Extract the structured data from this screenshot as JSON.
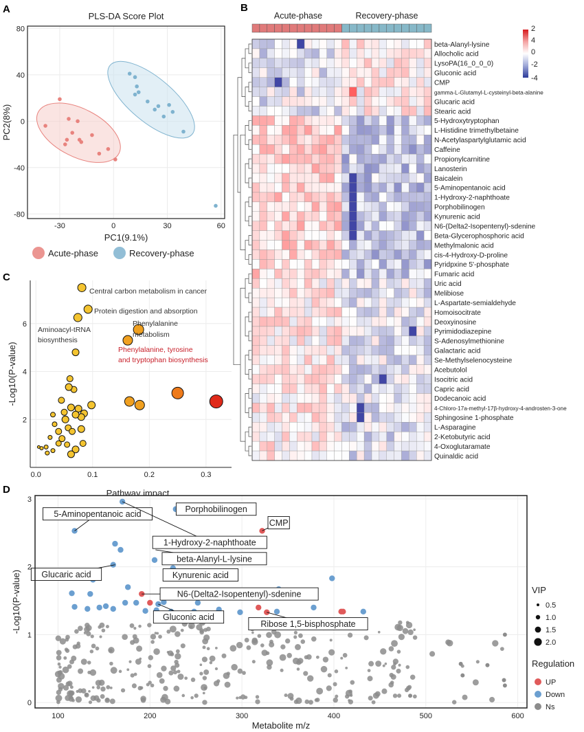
{
  "panels": {
    "A": "A",
    "B": "B",
    "C": "C",
    "D": "D"
  },
  "colors": {
    "acute": "#e8837e",
    "recovery": "#7fb3cf",
    "up": "#e05a5a",
    "down": "#6b9fd0",
    "ns": "#8c8c8c",
    "pathway": "#f4c430"
  },
  "chart_data": [
    {
      "id": "A",
      "type": "scatter",
      "title": "PLS-DA Score Plot",
      "xlabel": "PC1(9.1%)",
      "ylabel": "PC2(8%)",
      "xlim": [
        -48,
        62
      ],
      "ylim": [
        -84,
        82
      ],
      "xticks": [
        "-30",
        "0",
        "30",
        "60"
      ],
      "xtick_values": [
        -30,
        0,
        30,
        60
      ],
      "yticks": [
        "80",
        "40",
        "0",
        "-40",
        "-80"
      ],
      "ytick_values": [
        80,
        40,
        0,
        -40,
        -80
      ],
      "legend": [
        "Acute-phase",
        "Recovery-phase"
      ],
      "series": [
        {
          "name": "Acute-phase",
          "points": [
            [
              -30,
              19
            ],
            [
              -25,
              2
            ],
            [
              -20,
              0
            ],
            [
              -38,
              -4
            ],
            [
              -23,
              -10
            ],
            [
              -26,
              -16
            ],
            [
              -27,
              -20
            ],
            [
              -19,
              -16
            ],
            [
              -18,
              -18
            ],
            [
              -12,
              -12
            ],
            [
              -8,
              -28
            ],
            [
              -3,
              -24
            ],
            [
              1,
              -33
            ]
          ]
        },
        {
          "name": "Recovery-phase",
          "points": [
            [
              9,
              41
            ],
            [
              12,
              38
            ],
            [
              13,
              30
            ],
            [
              14,
              25
            ],
            [
              12,
              23
            ],
            [
              19,
              17
            ],
            [
              23,
              10
            ],
            [
              25,
              13
            ],
            [
              31,
              14
            ],
            [
              33,
              8
            ],
            [
              28,
              4
            ],
            [
              39,
              -9
            ],
            [
              57,
              -73
            ]
          ]
        }
      ]
    },
    {
      "id": "B",
      "type": "heatmap",
      "groups": [
        "Acute-phase",
        "Recovery-phase"
      ],
      "colorbar": [
        "2",
        "4",
        "0",
        "-2",
        "-4"
      ],
      "rows": [
        "beta-Alanyl-lysine",
        "Allocholic acid",
        "LysoPA(16_0_0_0)",
        "Gluconic acid",
        "CMP",
        "gamma-L-Glutamyl-L-cysteinyl-beta-alanine",
        "Glucaric acid",
        "Stearic acid",
        "5-Hydroxytryptophan",
        "L-Histidine trimethylbetaine",
        "N-Acetylaspartylglutamic acid",
        "Caffeine",
        "Propionylcarnitine",
        "Lanosterin",
        "Baicalein",
        "5-Aminopentanoic acid",
        "1-Hydroxy-2-naphthoate",
        "Porphobilinogen",
        "Kynurenic acid",
        "N6-(Delta2-Isopentenyl)-sdenine",
        "Beta-Glycerophosphoric acid",
        "Methylmalonic acid",
        "cis-4-Hydroxy-D-proline",
        "Pyridpxine 5'-phosphate",
        "Fumaric acid",
        "Uric acid",
        "Melibiose",
        "L-Aspartate-semialdehyde",
        "Homoisocitrate",
        "Deoxyinosine",
        "Pyrimidodiazepine",
        "S-Adenosylmethionine",
        "Galactaric acid",
        "Se-Methylselenocysteine",
        "Acebutolol",
        "Isocitric acid",
        "Capric acid",
        "Dodecanoic acid",
        "4-Chloro-17a-methyl-17β-hydroxy-4-androsten-3-one",
        "Sphingosine 1-phosphate",
        "L-Asparagine",
        "2-Ketobutyric acid",
        "4-Oxoglutaramate",
        "Quinaldic acid"
      ]
    },
    {
      "id": "C",
      "type": "scatter",
      "xlabel": "Pathway impact",
      "ylabel": "-Log10(P-value)",
      "xlim": [
        -0.01,
        0.345
      ],
      "ylim": [
        0,
        7.8
      ],
      "xticks": [
        "0.0",
        "0.1",
        "0.2",
        "0.3"
      ],
      "xtick_values": [
        0.0,
        0.1,
        0.2,
        0.3
      ],
      "yticks": [
        "2",
        "4",
        "6"
      ],
      "ytick_values": [
        2,
        4,
        6
      ],
      "annotations": [
        {
          "text": "Central carbon metabolism in cancer",
          "x": 0.081,
          "y": 7.5
        },
        {
          "text": "Protein digestion and absorption",
          "x": 0.094,
          "y": 6.6
        },
        {
          "text": "Aminoacyl-tRNA",
          "x": 0.052,
          "y": 6.0
        },
        {
          "text": "biosynthesis",
          "x": 0.052,
          "y": 5.6
        },
        {
          "text": "Phenylalanine",
          "x": 0.2,
          "y": 6.05
        },
        {
          "text": "metabolism",
          "x": 0.2,
          "y": 5.6
        },
        {
          "text": "Phenylalanine, tyrosine",
          "x": 0.219,
          "y": 4.85
        },
        {
          "text": "and tryptophan biosynthesis",
          "x": 0.219,
          "y": 4.4
        }
      ],
      "points": [
        {
          "x": 0.081,
          "y": 7.5,
          "s": 6,
          "c": "#f4c430"
        },
        {
          "x": 0.092,
          "y": 6.6,
          "s": 6,
          "c": "#f4c430"
        },
        {
          "x": 0.074,
          "y": 6.25,
          "s": 6,
          "c": "#f4c430"
        },
        {
          "x": 0.181,
          "y": 5.75,
          "s": 7.5,
          "c": "#f0a020"
        },
        {
          "x": 0.162,
          "y": 5.3,
          "s": 7,
          "c": "#f0a020"
        },
        {
          "x": 0.07,
          "y": 4.8,
          "s": 5,
          "c": "#f4c430"
        },
        {
          "x": 0.25,
          "y": 3.1,
          "s": 8.5,
          "c": "#ee7a1a"
        },
        {
          "x": 0.318,
          "y": 2.75,
          "s": 9.5,
          "c": "#e02a1a"
        },
        {
          "x": 0.165,
          "y": 2.75,
          "s": 7,
          "c": "#f0a020"
        },
        {
          "x": 0.183,
          "y": 2.6,
          "s": 7,
          "c": "#f0a020"
        },
        {
          "x": 0.06,
          "y": 3.7,
          "s": 4.5,
          "c": "#f4c430"
        },
        {
          "x": 0.058,
          "y": 3.35,
          "s": 5,
          "c": "#f4c430"
        },
        {
          "x": 0.067,
          "y": 3.25,
          "s": 4.5,
          "c": "#f4c430"
        },
        {
          "x": 0.045,
          "y": 2.8,
          "s": 4.5,
          "c": "#f4c430"
        },
        {
          "x": 0.062,
          "y": 2.5,
          "s": 5,
          "c": "#f4c430"
        },
        {
          "x": 0.075,
          "y": 2.45,
          "s": 5,
          "c": "#f4c430"
        },
        {
          "x": 0.085,
          "y": 2.25,
          "s": 5,
          "c": "#f4c430"
        },
        {
          "x": 0.098,
          "y": 2.6,
          "s": 5.5,
          "c": "#f4c430"
        },
        {
          "x": 0.08,
          "y": 2.1,
          "s": 5,
          "c": "#f4c430"
        },
        {
          "x": 0.07,
          "y": 2.2,
          "s": 5,
          "c": "#f4c430"
        },
        {
          "x": 0.052,
          "y": 2.0,
          "s": 5,
          "c": "#f4c430"
        },
        {
          "x": 0.057,
          "y": 1.65,
          "s": 4.5,
          "c": "#f4c430"
        },
        {
          "x": 0.064,
          "y": 1.5,
          "s": 4.5,
          "c": "#f4c430"
        },
        {
          "x": 0.08,
          "y": 1.6,
          "s": 5,
          "c": "#f4c430"
        },
        {
          "x": 0.04,
          "y": 1.5,
          "s": 4.5,
          "c": "#f4c430"
        },
        {
          "x": 0.046,
          "y": 1.2,
          "s": 4.5,
          "c": "#f4c430"
        },
        {
          "x": 0.05,
          "y": 2.3,
          "s": 4.5,
          "c": "#f4c430"
        },
        {
          "x": 0.03,
          "y": 2.2,
          "s": 3.5,
          "c": "#f4c430"
        },
        {
          "x": 0.033,
          "y": 1.8,
          "s": 3.5,
          "c": "#f4c430"
        },
        {
          "x": 0.04,
          "y": 1.0,
          "s": 4,
          "c": "#f4c430"
        },
        {
          "x": 0.07,
          "y": 0.75,
          "s": 5,
          "c": "#f4c430"
        },
        {
          "x": 0.083,
          "y": 1.0,
          "s": 4.5,
          "c": "#f4c430"
        },
        {
          "x": 0.062,
          "y": 0.55,
          "s": 5,
          "c": "#f4c430"
        },
        {
          "x": 0.055,
          "y": 0.95,
          "s": 4,
          "c": "#f4c430"
        },
        {
          "x": 0.025,
          "y": 1.25,
          "s": 3,
          "c": "#f4c430"
        },
        {
          "x": 0.018,
          "y": 0.85,
          "s": 3,
          "c": "#f4c430"
        },
        {
          "x": 0.01,
          "y": 0.8,
          "s": 2.5,
          "c": "#f4c430"
        },
        {
          "x": 0.005,
          "y": 0.85,
          "s": 2,
          "c": "#f4c430"
        },
        {
          "x": 0.02,
          "y": 0.6,
          "s": 3,
          "c": "#f4c430"
        },
        {
          "x": 0.03,
          "y": 0.7,
          "s": 3,
          "c": "#f4c430"
        }
      ]
    },
    {
      "id": "D",
      "type": "scatter",
      "xlabel": "Metabolite m/z",
      "ylabel": "-Log10(P-value)",
      "xlim": [
        75,
        610
      ],
      "ylim": [
        -0.08,
        3.05
      ],
      "xticks": [
        "100",
        "200",
        "300",
        "400",
        "500",
        "600"
      ],
      "xtick_values": [
        100,
        200,
        300,
        400,
        500,
        600
      ],
      "yticks": [
        "0",
        "1",
        "2",
        "3"
      ],
      "ytick_values": [
        0,
        1,
        2,
        3
      ],
      "legend_vip": {
        "title": "VIP",
        "items": [
          "0.5",
          "1.0",
          "1.5",
          "2.0"
        ],
        "sizes": [
          2,
          3.2,
          4.4,
          5.6
        ]
      },
      "legend_regulation": {
        "title": "Regulation",
        "items": [
          "UP",
          "Down",
          "Ns"
        ]
      },
      "labels": [
        {
          "text": "5-Aminopentanoic acid",
          "x": 118,
          "y": 2.53,
          "bx": 143,
          "by": 2.78
        },
        {
          "text": "Porphobilinogen",
          "x": 228,
          "y": 2.85,
          "bx": 272,
          "by": 2.85
        },
        {
          "text": "CMP",
          "x": 322,
          "y": 2.53,
          "bx": 340,
          "by": 2.65
        },
        {
          "text": "1-Hydroxy-2-naphthoate",
          "x": 170,
          "y": 2.96,
          "bx": 265,
          "by": 2.36
        },
        {
          "text": "beta-Alanyl-L-lysine",
          "x": 206,
          "y": 2.25,
          "bx": 270,
          "by": 2.12
        },
        {
          "text": "Glucaric acid",
          "x": 162,
          "y": 2.03,
          "bx": 109,
          "by": 1.89
        },
        {
          "text": "Kynurenic acid",
          "x": 220,
          "y": 1.85,
          "bx": 255,
          "by": 1.88
        },
        {
          "text": "N6-(Delta2-Isopentenyl)-sdenine",
          "x": 191,
          "y": 1.6,
          "bx": 297,
          "by": 1.6
        },
        {
          "text": "Gluconic acid",
          "x": 209,
          "y": 1.45,
          "bx": 242,
          "by": 1.26
        },
        {
          "text": "Ribose 1,5-bisphosphate",
          "x": 327,
          "y": 1.33,
          "bx": 372,
          "by": 1.16
        }
      ],
      "up": [
        [
          322,
          2.53
        ],
        [
          220,
          1.85
        ],
        [
          191,
          1.6
        ],
        [
          200,
          1.47
        ],
        [
          318,
          1.4
        ],
        [
          327,
          1.33
        ],
        [
          408,
          1.34
        ],
        [
          410,
          1.34
        ]
      ],
      "down": [
        [
          170,
          2.96
        ],
        [
          228,
          2.85
        ],
        [
          118,
          2.53
        ],
        [
          162,
          2.34
        ],
        [
          168,
          2.25
        ],
        [
          160,
          2.03
        ],
        [
          205,
          2.1
        ],
        [
          225,
          1.98
        ],
        [
          398,
          1.83
        ],
        [
          138,
          1.81
        ],
        [
          176,
          1.7
        ],
        [
          115,
          1.61
        ],
        [
          135,
          1.6
        ],
        [
          209,
          1.45
        ],
        [
          173,
          1.47
        ],
        [
          185,
          1.47
        ],
        [
          215,
          1.48
        ],
        [
          145,
          1.4
        ],
        [
          152,
          1.42
        ],
        [
          118,
          1.41
        ],
        [
          132,
          1.38
        ],
        [
          160,
          1.38
        ],
        [
          195,
          1.35
        ],
        [
          207,
          1.36
        ],
        [
          223,
          1.34
        ],
        [
          248,
          1.34
        ],
        [
          252,
          1.47
        ],
        [
          275,
          1.37
        ],
        [
          338,
          1.34
        ],
        [
          340,
          1.67
        ],
        [
          378,
          1.4
        ],
        [
          432,
          1.34
        ],
        [
          298,
          1.33
        ]
      ],
      "ns_x_range": [
        100,
        590
      ],
      "ns_count": 320
    }
  ]
}
